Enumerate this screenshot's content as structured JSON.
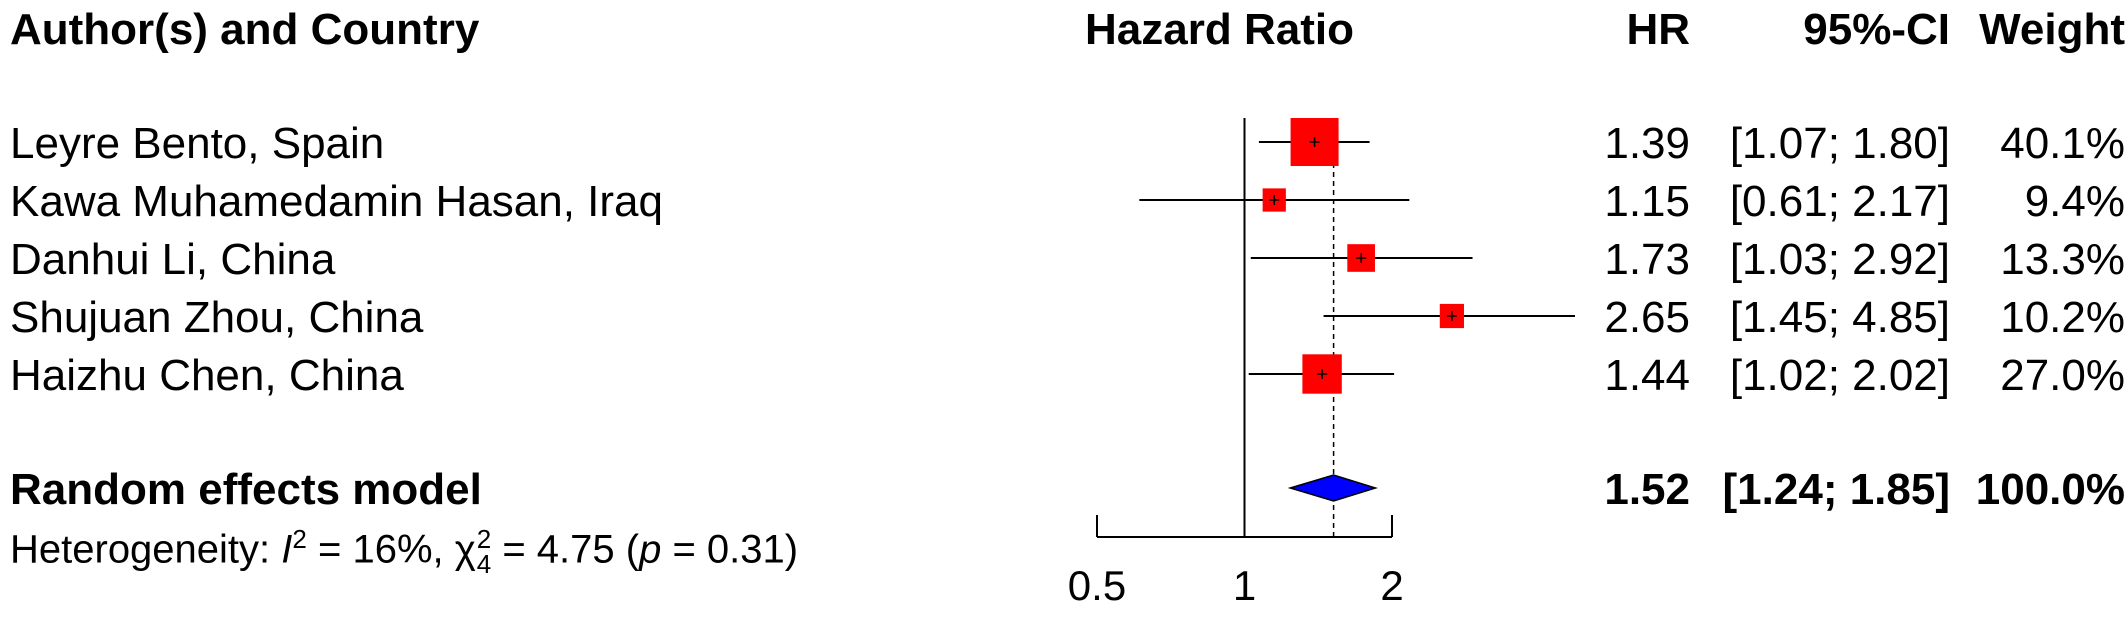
{
  "headers": {
    "study": "Author(s) and Country",
    "plot": "Hazard Ratio",
    "hr": "HR",
    "ci": "95%-CI",
    "weight": "Weight"
  },
  "heterogeneity": {
    "prefix": "Heterogeneity: ",
    "i2_symbol": "I",
    "i2_sup": "2",
    "i2_value": " = 16%, ",
    "chi_symbol": "χ",
    "chi_sup": "2",
    "chi_sub": "4",
    "chi_value": " = 4.75 (",
    "p_symbol": "p",
    "p_value": " = 0.31)"
  },
  "colors": {
    "study_square": "#ff0000",
    "pooled_diamond": "#0000ff"
  },
  "chart_data": {
    "type": "forest",
    "scale": "log",
    "null_value": 1,
    "x_ticks": [
      0.5,
      1,
      2
    ],
    "x_tick_labels": [
      "0.5",
      "1",
      "2"
    ],
    "xlim": [
      0.5,
      2
    ],
    "studies": [
      {
        "label": "Leyre Bento,  Spain",
        "hr": 1.39,
        "lower": 1.07,
        "upper": 1.8,
        "hr_text": "1.39",
        "ci_text": "[1.07; 1.80]",
        "weight": 40.1,
        "weight_text": "40.1%"
      },
      {
        "label": "Kawa Muhamedamin Hasan,  Iraq",
        "hr": 1.15,
        "lower": 0.61,
        "upper": 2.17,
        "hr_text": "1.15",
        "ci_text": "[0.61; 2.17]",
        "weight": 9.4,
        "weight_text": "9.4%"
      },
      {
        "label": "Danhui Li,  China",
        "hr": 1.73,
        "lower": 1.03,
        "upper": 2.92,
        "hr_text": "1.73",
        "ci_text": "[1.03; 2.92]",
        "weight": 13.3,
        "weight_text": "13.3%"
      },
      {
        "label": "Shujuan Zhou,  China",
        "hr": 2.65,
        "lower": 1.45,
        "upper": 4.85,
        "hr_text": "2.65",
        "ci_text": "[1.45; 4.85]",
        "weight": 10.2,
        "weight_text": "10.2%"
      },
      {
        "label": "Haizhu Chen,  China",
        "hr": 1.44,
        "lower": 1.02,
        "upper": 2.02,
        "hr_text": "1.44",
        "ci_text": "[1.02; 2.02]",
        "weight": 27.0,
        "weight_text": "27.0%"
      }
    ],
    "pooled": {
      "label": "Random effects model",
      "hr": 1.52,
      "lower": 1.24,
      "upper": 1.85,
      "hr_text": "1.52",
      "ci_text": "[1.24; 1.85]",
      "weight_text": "100.0%"
    }
  }
}
